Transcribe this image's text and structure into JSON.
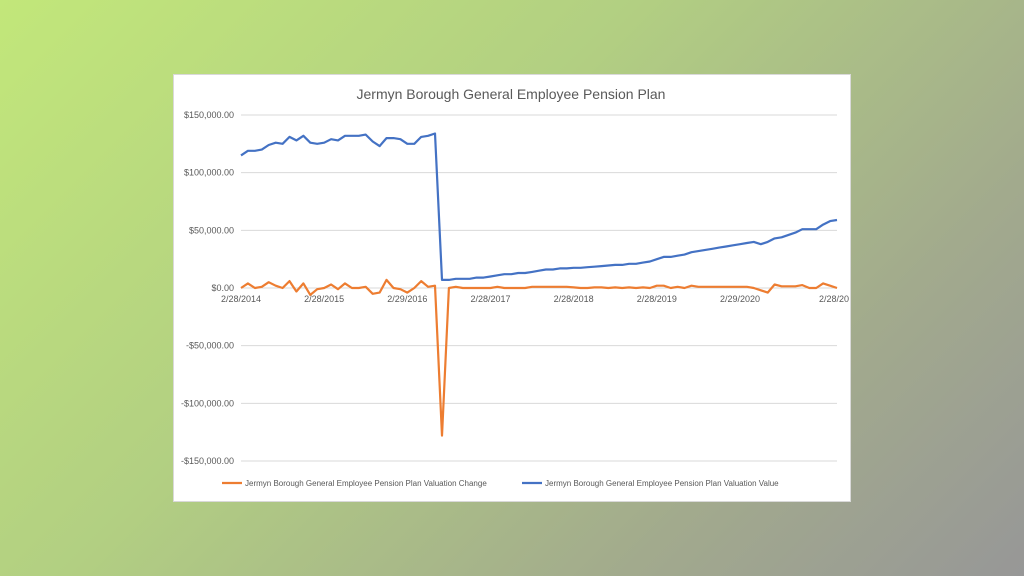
{
  "chart_data": {
    "type": "line",
    "title": "Jermyn Borough General Employee Pension Plan",
    "xlabel": "",
    "ylabel": "",
    "ylim": [
      -150000,
      150000
    ],
    "y_ticks": [
      150000,
      100000,
      50000,
      0,
      -50000,
      -100000,
      -150000
    ],
    "y_tick_labels": [
      "$150,000.00",
      "$100,000.00",
      "$50,000.00",
      "$0.00",
      "-$50,000.00",
      "-$100,000.00",
      "-$150,000.00"
    ],
    "x_tick_labels": [
      "2/28/2014",
      "2/28/2015",
      "2/29/2016",
      "2/28/2017",
      "2/28/2018",
      "2/28/2019",
      "2/29/2020",
      "2/28/20"
    ],
    "x_tick_index": [
      0,
      12,
      24,
      36,
      48,
      60,
      72,
      84
    ],
    "gridlines": true,
    "legend_position": "bottom",
    "series": [
      {
        "name": "Jermyn Borough General Employee Pension Plan Valuation Change",
        "color": "#ED7D31",
        "values": [
          0,
          4000,
          0,
          1000,
          5000,
          2000,
          0,
          6000,
          -3000,
          4000,
          -6000,
          -1000,
          0,
          3000,
          -1000,
          4000,
          0,
          0,
          1000,
          -5000,
          -4000,
          7000,
          0,
          -1000,
          -4000,
          0,
          6000,
          1000,
          2000,
          -128000,
          0,
          1000,
          0,
          0,
          0,
          0,
          0,
          1000,
          0,
          0,
          0,
          0,
          1000,
          1000,
          1000,
          1000,
          1000,
          1000,
          500,
          0,
          0,
          500,
          500,
          0,
          500,
          0,
          500,
          0,
          500,
          0,
          2000,
          2000,
          0,
          1000,
          0,
          2000,
          1000,
          1000,
          1000,
          1000,
          1000,
          1000,
          1000,
          1000,
          0,
          -2000,
          -4000,
          3000,
          1500,
          1500,
          1500,
          2500,
          0,
          0,
          4000,
          2000,
          0
        ]
      },
      {
        "name": "Jermyn Borough General Employee Pension Plan Valuation Value",
        "color": "#4472C4",
        "values": [
          115000,
          119000,
          119000,
          120000,
          124000,
          126000,
          125000,
          131000,
          128000,
          132000,
          126000,
          125000,
          126000,
          129000,
          128000,
          132000,
          132000,
          132000,
          133000,
          127000,
          123000,
          130000,
          130000,
          129000,
          125000,
          125000,
          131000,
          132000,
          134000,
          7000,
          7000,
          8000,
          8000,
          8000,
          9000,
          9000,
          10000,
          11000,
          12000,
          12000,
          13000,
          13000,
          14000,
          15000,
          16000,
          16000,
          17000,
          17000,
          17500,
          17500,
          18000,
          18500,
          19000,
          19500,
          20000,
          20000,
          21000,
          21000,
          22000,
          23000,
          25000,
          27000,
          27000,
          28000,
          29000,
          31000,
          32000,
          33000,
          34000,
          35000,
          36000,
          37000,
          38000,
          39000,
          40000,
          38000,
          40000,
          43000,
          44000,
          46000,
          48000,
          51000,
          51000,
          51000,
          55000,
          58000,
          59000
        ]
      }
    ]
  }
}
